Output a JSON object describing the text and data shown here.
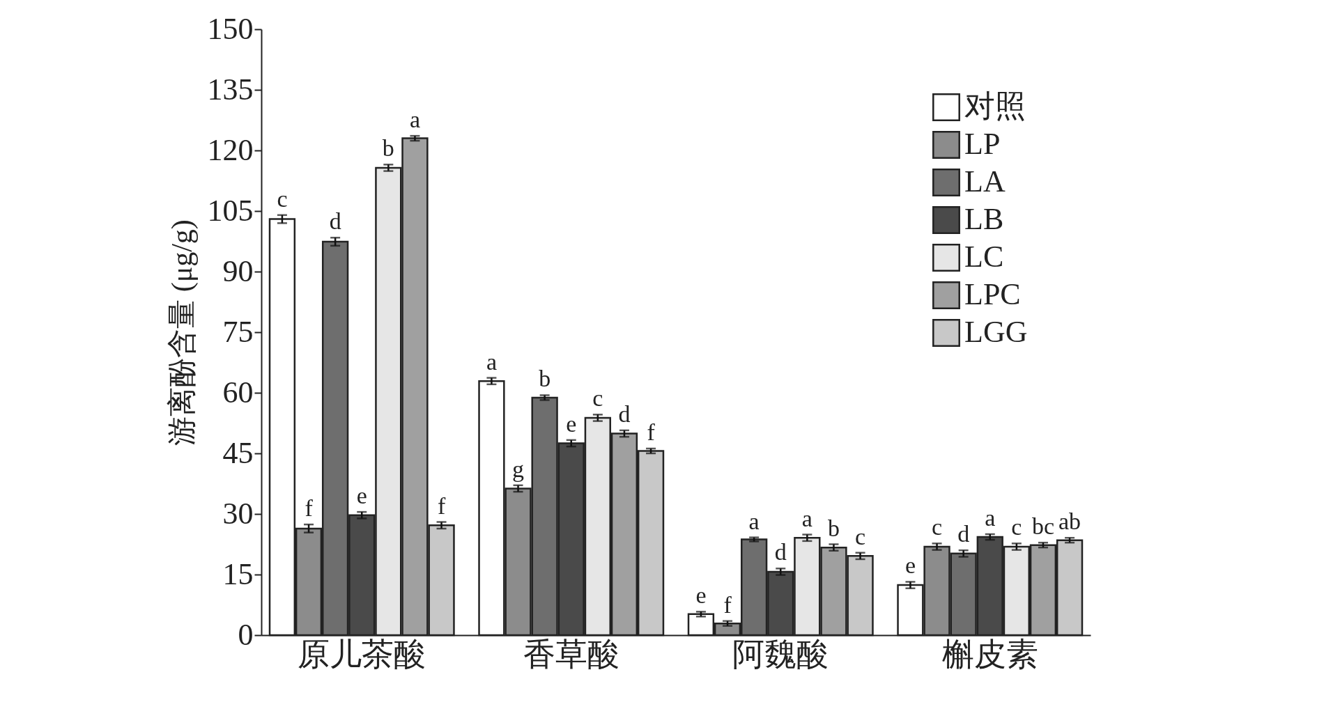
{
  "chart_data": {
    "type": "bar",
    "ylabel": "游离酚含量 (μg/g)",
    "categories": [
      "原儿茶酸",
      "香草酸",
      "阿魏酸",
      "槲皮素"
    ],
    "series": [
      {
        "name": "对照",
        "color": "#ffffff",
        "values": [
          103,
          62.9,
          5.2,
          12.4
        ],
        "errors": [
          1,
          0.8,
          0.6,
          0.8
        ],
        "value_labels": [
          "c",
          "a",
          "e",
          "e"
        ]
      },
      {
        "name": "LP",
        "color": "#8c8c8c",
        "values": [
          26.4,
          36.3,
          2.9,
          21.9
        ],
        "errors": [
          1,
          0.8,
          0.6,
          0.8
        ],
        "value_labels": [
          "f",
          "g",
          "f",
          "c"
        ]
      },
      {
        "name": "LA",
        "color": "#6e6e6e",
        "values": [
          97.4,
          58.8,
          23.7,
          20.2
        ],
        "errors": [
          1,
          0.6,
          0.5,
          0.8
        ],
        "value_labels": [
          "d",
          "b",
          "a",
          "d"
        ]
      },
      {
        "name": "LB",
        "color": "#4a4a4a",
        "values": [
          29.7,
          47.5,
          15.7,
          24.3
        ],
        "errors": [
          0.8,
          0.8,
          0.8,
          0.7
        ],
        "value_labels": [
          "e",
          "e",
          "d",
          "a"
        ]
      },
      {
        "name": "LC",
        "color": "#e6e6e6",
        "values": [
          115.7,
          53.8,
          24.1,
          21.9
        ],
        "errors": [
          0.8,
          0.8,
          0.8,
          0.8
        ],
        "value_labels": [
          "b",
          "c",
          "a",
          "c"
        ]
      },
      {
        "name": "LPC",
        "color": "#a0a0a0",
        "values": [
          123,
          49.9,
          21.7,
          22.3
        ],
        "errors": [
          0.6,
          0.8,
          0.8,
          0.6
        ],
        "value_labels": [
          "a",
          "d",
          "b",
          "bc"
        ]
      },
      {
        "name": "LGG",
        "color": "#c8c8c8",
        "values": [
          27.2,
          45.6,
          19.6,
          23.5
        ],
        "errors": [
          0.8,
          0.6,
          0.8,
          0.6
        ],
        "value_labels": [
          "f",
          "f",
          "c",
          "ab"
        ]
      }
    ],
    "ylim": [
      0,
      150
    ],
    "yticks": [
      0,
      15,
      30,
      45,
      60,
      75,
      90,
      105,
      120,
      135,
      150
    ],
    "legend": "top right"
  }
}
